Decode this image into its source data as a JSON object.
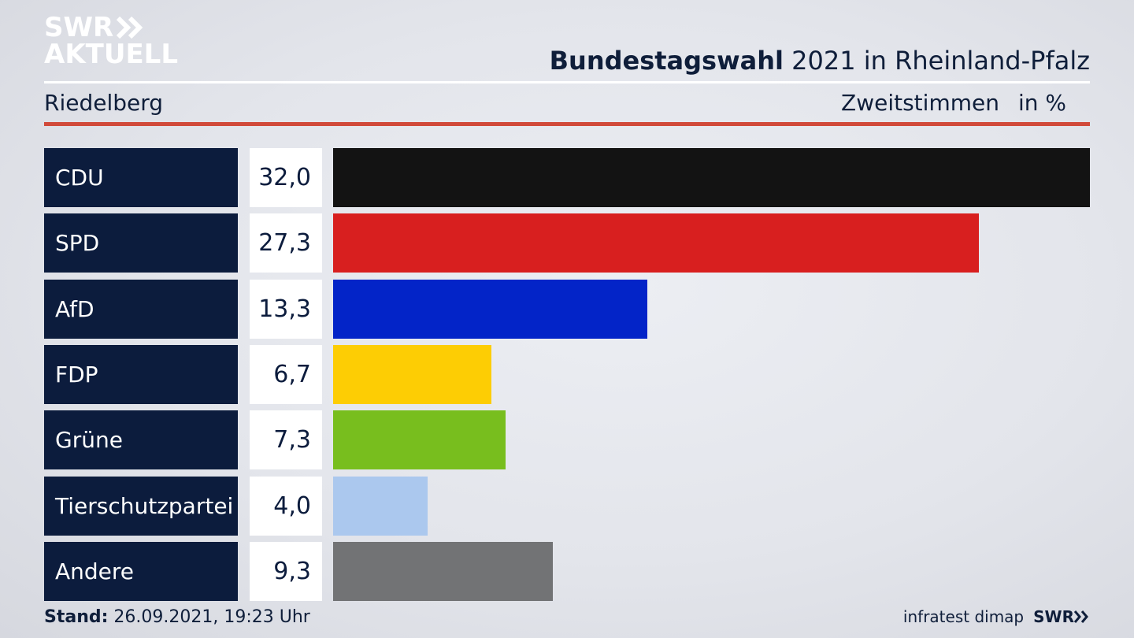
{
  "brand": {
    "logo_line1": "SWR",
    "logo_line2": "AKTUELL",
    "footer_logo": "SWR"
  },
  "header": {
    "title_bold": "Bundestagswahl",
    "title_rest": "2021 in Rheinland-Pfalz",
    "region": "Riedelberg",
    "metric": "Zweitstimmen",
    "unit": "in %"
  },
  "footer": {
    "stand_label": "Stand:",
    "stand_value": "26.09.2021, 19:23 Uhr",
    "source": "infratest dimap"
  },
  "chart_data": {
    "type": "bar",
    "orientation": "horizontal",
    "categories": [
      "CDU",
      "SPD",
      "AfD",
      "FDP",
      "Grüne",
      "Tierschutzpartei",
      "Andere"
    ],
    "values": [
      32.0,
      27.3,
      13.3,
      6.7,
      7.3,
      4.0,
      9.3
    ],
    "value_labels": [
      "32,0",
      "27,3",
      "13,3",
      "6,7",
      "7,3",
      "4,0",
      "9,3"
    ],
    "colors": [
      "#131313",
      "#d81f1f",
      "#0324c8",
      "#fdcd04",
      "#78be1e",
      "#abc8ee",
      "#727375"
    ],
    "xlim": [
      0,
      32.0
    ],
    "grid": false
  }
}
